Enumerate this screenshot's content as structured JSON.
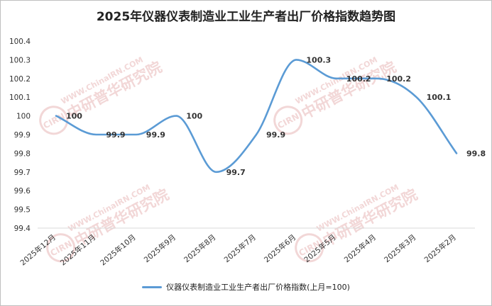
{
  "chart_data": {
    "type": "line",
    "title": "2025年仪器仪表制造业工业生产者出厂价格指数趋势图",
    "categories": [
      "2025年12月",
      "2025年11月",
      "2025年10月",
      "2025年9月",
      "2025年8月",
      "2025年7月",
      "2025年6月",
      "2025年5月",
      "2025年4月",
      "2025年3月",
      "2025年2月"
    ],
    "series": [
      {
        "name": "仪器仪表制造业工业生产者出厂价格指数(上月=100)",
        "values": [
          100,
          99.9,
          99.9,
          100,
          99.7,
          99.9,
          100.3,
          100.2,
          100.2,
          100.1,
          99.8
        ],
        "labels": [
          "100",
          "99.9",
          "99.9",
          "100",
          "99.7",
          "99.9",
          "100.3",
          "100.2",
          "100.2",
          "100.1",
          "99.8"
        ],
        "color": "#5b9bd5"
      }
    ],
    "ylim": [
      99.4,
      100.4
    ],
    "yticks": [
      "100.4",
      "100.3",
      "100.2",
      "100.1",
      "100",
      "99.9",
      "99.8",
      "99.7",
      "99.6",
      "99.5",
      "99.4"
    ],
    "grid": false,
    "smooth": true,
    "legend_position": "bottom"
  },
  "watermark": {
    "url": "WWW.ChinaIRN.COM",
    "name": "中研普华研究院",
    "badge": "CIRN",
    "color": "#e8b7b7"
  },
  "colors": {
    "line": "#5b9bd5",
    "axis": "#d9d9d9"
  }
}
